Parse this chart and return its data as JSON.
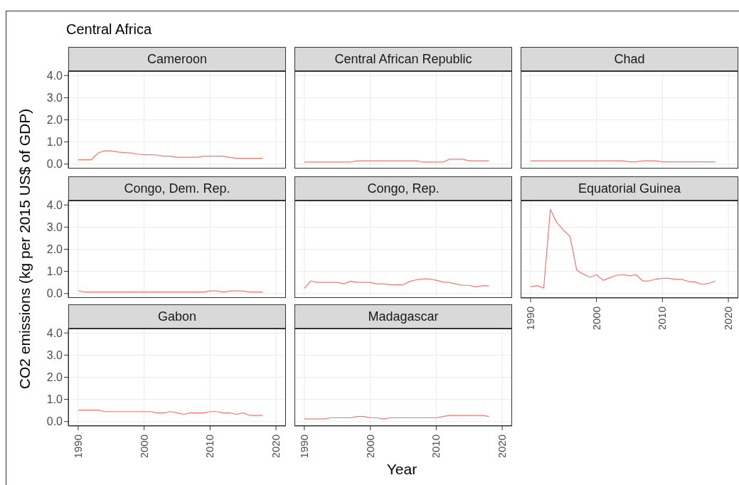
{
  "chart_data": [
    {
      "type": "line",
      "title": "Cameroon",
      "annotations": [
        "Central Africa"
      ],
      "ylabel": "CO2 emissions (kg per 2015 US$ of GDP)",
      "x": [
        1990,
        1991,
        1992,
        1993,
        1994,
        1995,
        1996,
        1997,
        1998,
        1999,
        2000,
        2001,
        2002,
        2003,
        2004,
        2005,
        2006,
        2007,
        2008,
        2009,
        2010,
        2011,
        2012,
        2013,
        2014,
        2015,
        2016,
        2017,
        2018
      ],
      "series": [
        {
          "color": "#f8766d",
          "values": [
            0.2,
            0.2,
            0.2,
            0.5,
            0.6,
            0.6,
            0.55,
            0.52,
            0.5,
            0.45,
            0.42,
            0.42,
            0.41,
            0.36,
            0.36,
            0.31,
            0.31,
            0.31,
            0.31,
            0.36,
            0.36,
            0.36,
            0.36,
            0.3,
            0.26,
            0.26,
            0.26,
            0.26,
            0.26
          ]
        }
      ],
      "xlim": [
        1988.5,
        2021.5
      ],
      "ylim": [
        -0.2,
        4.2
      ],
      "xticks": [
        1990,
        2000,
        2010,
        2020
      ],
      "yticks": [
        {
          "value": 0,
          "label": "0.0"
        },
        {
          "value": 1,
          "label": "1.0"
        },
        {
          "value": 2,
          "label": "2.0"
        },
        {
          "value": 3,
          "label": "3.0"
        },
        {
          "value": 4,
          "label": "4.0"
        }
      ],
      "grid": true,
      "tick_labels": "y"
    },
    {
      "type": "line",
      "title": "Central African Republic",
      "x": [
        1990,
        1991,
        1992,
        1993,
        1994,
        1995,
        1996,
        1997,
        1998,
        1999,
        2000,
        2001,
        2002,
        2003,
        2004,
        2005,
        2006,
        2007,
        2008,
        2009,
        2010,
        2011,
        2012,
        2013,
        2014,
        2015,
        2016,
        2017,
        2018
      ],
      "series": [
        {
          "color": "#f8766d",
          "values": [
            0.09,
            0.09,
            0.09,
            0.09,
            0.09,
            0.09,
            0.09,
            0.09,
            0.15,
            0.15,
            0.15,
            0.15,
            0.15,
            0.15,
            0.15,
            0.15,
            0.15,
            0.15,
            0.09,
            0.09,
            0.09,
            0.09,
            0.22,
            0.22,
            0.22,
            0.15,
            0.15,
            0.15,
            0.15
          ]
        }
      ],
      "xlim": [
        1988.5,
        2021.5
      ],
      "ylim": [
        -0.2,
        4.2
      ],
      "xticks": [
        1990,
        2000,
        2010,
        2020
      ],
      "yticks": [
        0,
        1,
        2,
        3,
        4
      ],
      "grid": true,
      "tick_labels": false
    },
    {
      "type": "line",
      "title": "Chad",
      "x": [
        1990,
        1991,
        1992,
        1993,
        1994,
        1995,
        1996,
        1997,
        1998,
        1999,
        2000,
        2001,
        2002,
        2003,
        2004,
        2005,
        2006,
        2007,
        2008,
        2009,
        2010,
        2011,
        2012,
        2013,
        2014,
        2015,
        2016,
        2017,
        2018
      ],
      "series": [
        {
          "color": "#f8766d",
          "values": [
            0.15,
            0.15,
            0.15,
            0.15,
            0.15,
            0.15,
            0.15,
            0.15,
            0.15,
            0.15,
            0.15,
            0.15,
            0.15,
            0.15,
            0.15,
            0.1,
            0.1,
            0.15,
            0.15,
            0.15,
            0.1,
            0.1,
            0.1,
            0.1,
            0.1,
            0.1,
            0.1,
            0.1,
            0.1
          ]
        }
      ],
      "xlim": [
        1988.5,
        2021.5
      ],
      "ylim": [
        -0.2,
        4.2
      ],
      "xticks": [
        1990,
        2000,
        2010,
        2020
      ],
      "yticks": [
        0,
        1,
        2,
        3,
        4
      ],
      "grid": true,
      "tick_labels": false
    },
    {
      "type": "line",
      "title": "Congo, Dem. Rep.",
      "x": [
        1990,
        1991,
        1992,
        1993,
        1994,
        1995,
        1996,
        1997,
        1998,
        1999,
        2000,
        2001,
        2002,
        2003,
        2004,
        2005,
        2006,
        2007,
        2008,
        2009,
        2010,
        2011,
        2012,
        2013,
        2014,
        2015,
        2016,
        2017,
        2018
      ],
      "series": [
        {
          "color": "#f8766d",
          "values": [
            0.13,
            0.07,
            0.07,
            0.07,
            0.07,
            0.07,
            0.07,
            0.07,
            0.07,
            0.07,
            0.07,
            0.07,
            0.07,
            0.07,
            0.07,
            0.07,
            0.07,
            0.07,
            0.07,
            0.07,
            0.12,
            0.12,
            0.07,
            0.12,
            0.12,
            0.12,
            0.07,
            0.07,
            0.07
          ]
        }
      ],
      "xlim": [
        1988.5,
        2021.5
      ],
      "ylim": [
        -0.2,
        4.2
      ],
      "xticks": [
        1990,
        2000,
        2010,
        2020
      ],
      "yticks": [
        {
          "value": 0,
          "label": "0.0"
        },
        {
          "value": 1,
          "label": "1.0"
        },
        {
          "value": 2,
          "label": "2.0"
        },
        {
          "value": 3,
          "label": "3.0"
        },
        {
          "value": 4,
          "label": "4.0"
        }
      ],
      "grid": true,
      "tick_labels": "y"
    },
    {
      "type": "line",
      "title": "Congo, Rep.",
      "x": [
        1990,
        1991,
        1992,
        1993,
        1994,
        1995,
        1996,
        1997,
        1998,
        1999,
        2000,
        2001,
        2002,
        2003,
        2004,
        2005,
        2006,
        2007,
        2008,
        2009,
        2010,
        2011,
        2012,
        2013,
        2014,
        2015,
        2016,
        2017,
        2018
      ],
      "series": [
        {
          "color": "#f8766d",
          "values": [
            0.24,
            0.57,
            0.5,
            0.5,
            0.5,
            0.5,
            0.44,
            0.56,
            0.5,
            0.5,
            0.5,
            0.44,
            0.44,
            0.4,
            0.4,
            0.4,
            0.55,
            0.62,
            0.66,
            0.66,
            0.6,
            0.52,
            0.5,
            0.43,
            0.37,
            0.37,
            0.3,
            0.35,
            0.35
          ]
        }
      ],
      "xlim": [
        1988.5,
        2021.5
      ],
      "ylim": [
        -0.2,
        4.2
      ],
      "xticks": [
        1990,
        2000,
        2010,
        2020
      ],
      "yticks": [
        0,
        1,
        2,
        3,
        4
      ],
      "grid": true,
      "tick_labels": false
    },
    {
      "type": "line",
      "title": "Equatorial Guinea",
      "x": [
        1990,
        1991,
        1992,
        1993,
        1994,
        1995,
        1996,
        1997,
        1998,
        1999,
        2000,
        2001,
        2002,
        2003,
        2004,
        2005,
        2006,
        2007,
        2008,
        2009,
        2010,
        2011,
        2012,
        2013,
        2014,
        2015,
        2016,
        2017,
        2018
      ],
      "series": [
        {
          "color": "#f8766d",
          "values": [
            0.31,
            0.36,
            0.25,
            3.8,
            3.2,
            2.86,
            2.58,
            1.05,
            0.88,
            0.74,
            0.85,
            0.6,
            0.71,
            0.82,
            0.86,
            0.8,
            0.85,
            0.57,
            0.57,
            0.65,
            0.69,
            0.69,
            0.64,
            0.64,
            0.54,
            0.52,
            0.41,
            0.46,
            0.57
          ]
        }
      ],
      "xlim": [
        1988.5,
        2021.5
      ],
      "ylim": [
        -0.2,
        4.2
      ],
      "xticks": [
        1990,
        2000,
        2010,
        2020
      ],
      "yticks": [
        0,
        1,
        2,
        3,
        4
      ],
      "grid": true,
      "tick_labels": "x"
    },
    {
      "type": "line",
      "title": "Gabon",
      "x": [
        1990,
        1991,
        1992,
        1993,
        1994,
        1995,
        1996,
        1997,
        1998,
        1999,
        2000,
        2001,
        2002,
        2003,
        2004,
        2005,
        2006,
        2007,
        2008,
        2009,
        2010,
        2011,
        2012,
        2013,
        2014,
        2015,
        2016,
        2017,
        2018
      ],
      "series": [
        {
          "color": "#f8766d",
          "values": [
            0.52,
            0.52,
            0.52,
            0.52,
            0.45,
            0.45,
            0.45,
            0.45,
            0.45,
            0.45,
            0.45,
            0.45,
            0.39,
            0.39,
            0.45,
            0.39,
            0.33,
            0.39,
            0.39,
            0.39,
            0.45,
            0.45,
            0.39,
            0.39,
            0.33,
            0.39,
            0.28,
            0.28,
            0.28
          ]
        }
      ],
      "xlim": [
        1988.5,
        2021.5
      ],
      "ylim": [
        -0.2,
        4.2
      ],
      "xticks": [
        1990,
        2000,
        2010,
        2020
      ],
      "yticks": [
        {
          "value": 0,
          "label": "0.0"
        },
        {
          "value": 1,
          "label": "1.0"
        },
        {
          "value": 2,
          "label": "2.0"
        },
        {
          "value": 3,
          "label": "3.0"
        },
        {
          "value": 4,
          "label": "4.0"
        }
      ],
      "grid": true
    },
    {
      "type": "line",
      "title": "Madagascar",
      "xlabel": "Year",
      "x": [
        1990,
        1991,
        1992,
        1993,
        1994,
        1995,
        1996,
        1997,
        1998,
        1999,
        2000,
        2001,
        2002,
        2003,
        2004,
        2005,
        2006,
        2007,
        2008,
        2009,
        2010,
        2011,
        2012,
        2013,
        2014,
        2015,
        2016,
        2017,
        2018
      ],
      "series": [
        {
          "color": "#f8766d",
          "values": [
            0.12,
            0.12,
            0.12,
            0.12,
            0.17,
            0.17,
            0.17,
            0.17,
            0.23,
            0.23,
            0.17,
            0.17,
            0.12,
            0.17,
            0.17,
            0.17,
            0.17,
            0.17,
            0.17,
            0.17,
            0.17,
            0.23,
            0.28,
            0.28,
            0.28,
            0.28,
            0.28,
            0.28,
            0.23
          ]
        }
      ],
      "xlim": [
        1988.5,
        2021.5
      ],
      "ylim": [
        -0.2,
        4.2
      ],
      "xticks": [
        1990,
        2000,
        2010,
        2020
      ],
      "yticks": [
        0,
        1,
        2,
        3,
        4
      ],
      "grid": true,
      "tick_labels": "x"
    }
  ]
}
